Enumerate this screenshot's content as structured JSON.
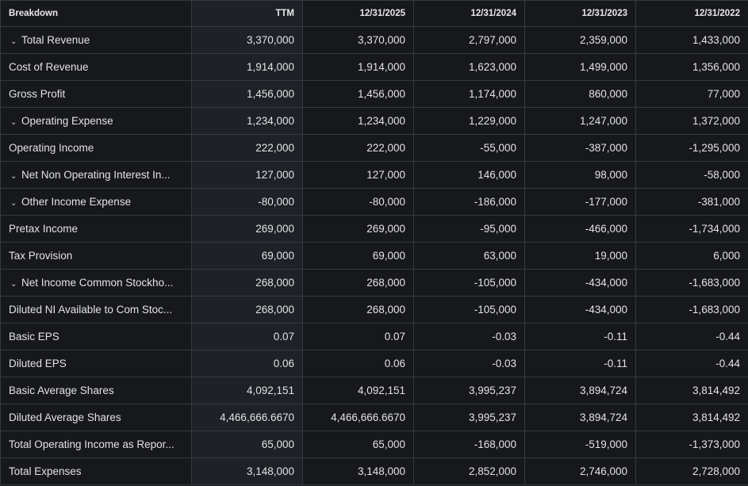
{
  "table": {
    "headers": [
      "Breakdown",
      "TTM",
      "12/31/2025",
      "12/31/2024",
      "12/31/2023",
      "12/31/2022"
    ],
    "rows": [
      {
        "label": "Total Revenue",
        "expandable": true,
        "values": [
          "3,370,000",
          "3,370,000",
          "2,797,000",
          "2,359,000",
          "1,433,000"
        ]
      },
      {
        "label": "Cost of Revenue",
        "expandable": false,
        "values": [
          "1,914,000",
          "1,914,000",
          "1,623,000",
          "1,499,000",
          "1,356,000"
        ]
      },
      {
        "label": "Gross Profit",
        "expandable": false,
        "values": [
          "1,456,000",
          "1,456,000",
          "1,174,000",
          "860,000",
          "77,000"
        ]
      },
      {
        "label": "Operating Expense",
        "expandable": true,
        "values": [
          "1,234,000",
          "1,234,000",
          "1,229,000",
          "1,247,000",
          "1,372,000"
        ]
      },
      {
        "label": "Operating Income",
        "expandable": false,
        "values": [
          "222,000",
          "222,000",
          "-55,000",
          "-387,000",
          "-1,295,000"
        ]
      },
      {
        "label": "Net Non Operating Interest In...",
        "expandable": true,
        "values": [
          "127,000",
          "127,000",
          "146,000",
          "98,000",
          "-58,000"
        ]
      },
      {
        "label": "Other Income Expense",
        "expandable": true,
        "values": [
          "-80,000",
          "-80,000",
          "-186,000",
          "-177,000",
          "-381,000"
        ]
      },
      {
        "label": "Pretax Income",
        "expandable": false,
        "values": [
          "269,000",
          "269,000",
          "-95,000",
          "-466,000",
          "-1,734,000"
        ]
      },
      {
        "label": "Tax Provision",
        "expandable": false,
        "values": [
          "69,000",
          "69,000",
          "63,000",
          "19,000",
          "6,000"
        ]
      },
      {
        "label": "Net Income Common Stockho...",
        "expandable": true,
        "values": [
          "268,000",
          "268,000",
          "-105,000",
          "-434,000",
          "-1,683,000"
        ]
      },
      {
        "label": "Diluted NI Available to Com Stoc...",
        "expandable": false,
        "values": [
          "268,000",
          "268,000",
          "-105,000",
          "-434,000",
          "-1,683,000"
        ]
      },
      {
        "label": "Basic EPS",
        "expandable": false,
        "values": [
          "0.07",
          "0.07",
          "-0.03",
          "-0.11",
          "-0.44"
        ]
      },
      {
        "label": "Diluted EPS",
        "expandable": false,
        "values": [
          "0.06",
          "0.06",
          "-0.03",
          "-0.11",
          "-0.44"
        ]
      },
      {
        "label": "Basic Average Shares",
        "expandable": false,
        "values": [
          "4,092,151",
          "4,092,151",
          "3,995,237",
          "3,894,724",
          "3,814,492"
        ]
      },
      {
        "label": "Diluted Average Shares",
        "expandable": false,
        "values": [
          "4,466,666.6670",
          "4,466,666.6670",
          "3,995,237",
          "3,894,724",
          "3,814,492"
        ]
      },
      {
        "label": "Total Operating Income as Repor...",
        "expandable": false,
        "values": [
          "65,000",
          "65,000",
          "-168,000",
          "-519,000",
          "-1,373,000"
        ]
      },
      {
        "label": "Total Expenses",
        "expandable": false,
        "values": [
          "3,148,000",
          "3,148,000",
          "2,852,000",
          "2,746,000",
          "2,728,000"
        ]
      }
    ],
    "expand_icon": "chevron-down-icon"
  }
}
